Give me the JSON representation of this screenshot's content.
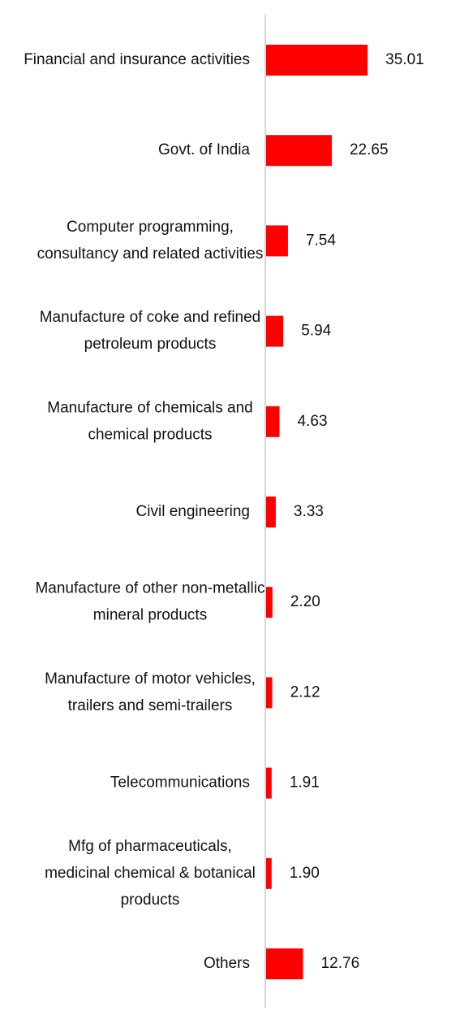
{
  "chart_data": {
    "type": "barh",
    "categories": [
      "Financial and insurance activities",
      "Govt. of India",
      "Computer programming, consultancy and related activities",
      "Manufacture of coke and refined petroleum products",
      "Manufacture of chemicals and chemical products",
      "Civil engineering",
      "Manufacture of other non-metallic mineral products",
      "Manufacture of motor vehicles, trailers and semi-trailers",
      "Telecommunications",
      "Mfg of pharmaceuticals, medicinal chemical & botanical products",
      "Others"
    ],
    "values": [
      35.01,
      22.65,
      7.54,
      5.94,
      4.63,
      3.33,
      2.2,
      2.12,
      1.91,
      1.9,
      12.76
    ],
    "value_labels": [
      "35.01",
      "22.65",
      "7.54",
      "5.94",
      "4.63",
      "3.33",
      "2.20",
      "2.12",
      "1.91",
      "1.90",
      "12.76"
    ],
    "color": "#ff0000",
    "xlim": [
      0,
      40
    ]
  }
}
